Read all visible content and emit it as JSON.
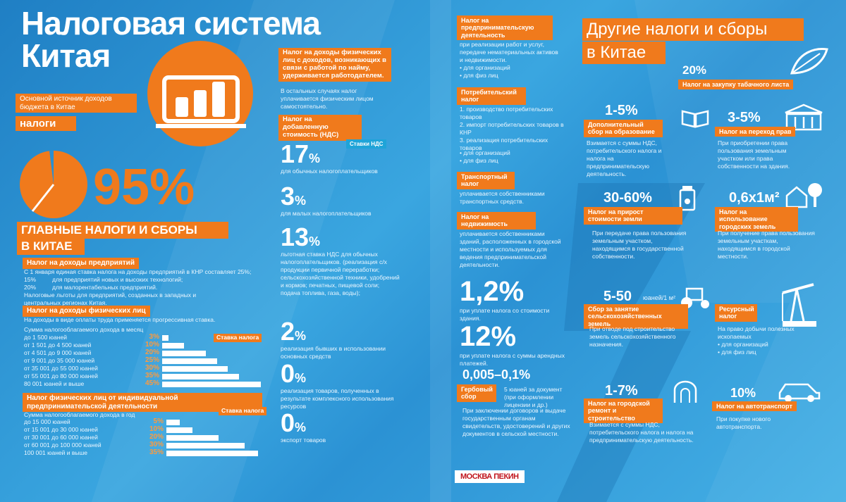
{
  "left": {
    "title_line1": "Налоговая система",
    "title_line2": "Китая",
    "source_label": "Основной источник доходов бюджета в Китае",
    "source_value": "налоги",
    "percent": "95%",
    "main_header_line1": "ГЛАВНЫЕ НАЛОГИ И СБОРЫ",
    "main_header_line2": "В КИТАЕ",
    "corp_title": "Налог на доходы предприятий",
    "corp_text1": "С 1 января единая ставка налога на доходы предприятий в КНР составляет 25%;",
    "corp_rate1": "15%",
    "corp_text2": "для предприятий новых и высоких технологий;",
    "corp_rate2": "20%",
    "corp_text3": "для малорентабельных предприятий.",
    "corp_text4": "Налоговые льготы для предприятий, созданных в западных и центральных регионах Китая.",
    "pit_title": "Налог на доходы физических лиц",
    "pit_text": "На доходы в виде оплаты труда применяется прогрессивная ставка.",
    "pit_head": "Сумма налогооблагаемого дохода в месяц",
    "pit_rate_label": "Ставка налога",
    "pit_rows": [
      {
        "label": "до 1 500 юаней",
        "rate": "3%",
        "level": 3
      },
      {
        "label": "от 1 501 до 4 500 юаней",
        "rate": "10%",
        "level": 10
      },
      {
        "label": "от 4 501 до 9 000 юаней",
        "rate": "20%",
        "level": 20
      },
      {
        "label": "от 9 001 до 35 000 юаней",
        "rate": "25%",
        "level": 25
      },
      {
        "label": "от 35 001 до 55 000 юаней",
        "rate": "30%",
        "level": 30
      },
      {
        "label": "от 55 001 до 80 000 юаней",
        "rate": "35%",
        "level": 35
      },
      {
        "label": "80 001 юаней и выше",
        "rate": "45%",
        "level": 45
      }
    ],
    "ent_title": "Налог физических лиц от индивидуальной предпринимательской деятельности",
    "ent_head": "Сумма налогооблагаемого дохода в год",
    "ent_rate_label": "Ставка налога",
    "ent_rows": [
      {
        "label": "до 15 000 юаней",
        "rate": "5%",
        "level": 5
      },
      {
        "label": "от 15 001 до 30 000 юаней",
        "rate": "10%",
        "level": 10
      },
      {
        "label": "от 30 001 до 60 000 юаней",
        "rate": "20%",
        "level": 20
      },
      {
        "label": "от 60 001 до 100 000 юаней",
        "rate": "30%",
        "level": 30
      },
      {
        "label": "100 001 юаней и выше",
        "rate": "35%",
        "level": 35
      }
    ]
  },
  "middle": {
    "pit_box": "Налог на доходы физических лиц с доходов, возникающих в связи с работой по найму, удерживается работодателем.",
    "pit_box_text": "В остальных случаях налог уплачивается физическим лицом самостоятельно.",
    "vat_title": "Налог на добавленную стоимость (НДС)",
    "vat_rates_label": "Ставки НДС",
    "vat": [
      {
        "num": "17",
        "unit": "%",
        "text": "для обычных налогоплательщиков"
      },
      {
        "num": "3",
        "unit": "%",
        "text": "для малых налогоплательщиков"
      },
      {
        "num": "13",
        "unit": "%",
        "text": "льготная ставка НДС для обычных налогоплательщиков. (реализация с/х продукции первичной переработки; сельскохозяйственной техники, удобрений и кормов; печатных, пищевой соли; подача топлива, газа, воды);"
      },
      {
        "num": "2",
        "unit": "%",
        "text": "реализация бывших в использовании основных средств"
      },
      {
        "num": "0",
        "unit": "%",
        "text": "реализация товаров, полученных в результате комплексного использования ресурсов"
      },
      {
        "num": "0",
        "unit": "%",
        "text": "экспорт товаров"
      }
    ]
  },
  "center": {
    "business_title": "Налог на предпринимательскую деятельность",
    "business_text": "при реализации работ и услуг, передаче нематериальных активов и недвижимости.",
    "business_b1": "• для организаций",
    "business_b2": "• для физ лиц",
    "consumption_title": "Потребительский налог",
    "consumption_text": "1. производство потребительских товаров\n2. импорт потребительских товаров в КНР\n3. реализация потребительских товаров",
    "consumption_b1": "• для организаций",
    "consumption_b2": "• для физ лиц",
    "transport_title": "Транспортный налог",
    "transport_text": "уплачивается собственниками транспортных средств.",
    "property_title": "Налог на недвижимость",
    "property_text": "уплачивается собственниками зданий, расположенных в городской местности и используемых для ведения предпринимательской деятельности.",
    "r1_num": "1,2%",
    "r1_text": "при уплате налога со стоимости здания.",
    "r2_num": "12%",
    "r2_text": "при уплате налога с суммы арендных платежей.",
    "stamp_num": "0,005–0,1%",
    "stamp_title": "Гербовый сбор",
    "stamp_side": "5 юаней за документ (при оформлении лицензии и др.)",
    "stamp_text": "При заключении договоров и выдаче государственным органам свидетельств, удостоверений и других документов в сельской местности."
  },
  "right": {
    "title_line1": "Другие налоги и сборы",
    "title_line2": "в Китае",
    "tobacco_num": "20%",
    "tobacco_title": "Налог на закупку табачного листа",
    "edu_num": "1-5%",
    "edu_title": "Дополнительный сбор на образование",
    "edu_text": "Взимается с суммы НДС, потребительского налога и налога на предпринимательскую деятельность.",
    "rights_num": "3-5%",
    "rights_title": "Налог на переход прав",
    "rights_text": "При приобретении права пользования земельным участком или права собственности на здания.",
    "land_num": "30-60%",
    "land_title": "Налог на прирост стоимости земли",
    "land_text": "При передаче права пользования земельным участком, находящимся в государственной собственности.",
    "urban_num": "0,6x1м²",
    "urban_title": "Налог на использование городских земель",
    "urban_text": "При получение права пользования земельным участкам, находящимся в городской местности.",
    "farm_num": "5-50",
    "farm_unit": "юаней/1 м²",
    "farm_title": "Сбор за занятие сельскохозяйственных земель",
    "farm_text": "При отводе под строительство земель сельскохозяйственного назначения.",
    "res_title": "Ресурсный налог",
    "res_text": "На право добычи полезных ископаемых",
    "res_b1": "• для организаций",
    "res_b2": "• для физ лиц",
    "city_num": "1-7%",
    "city_title": "Налог на городской ремонт и строительство",
    "city_text": "Взимается с суммы НДС, потребительского налога и налога на предпринимательскую деятельность.",
    "car_num": "10%",
    "car_title": "Налог на автотранспорт",
    "car_text": "При покупке нового автотранспорта.",
    "logo": "МОСКВА ПЕКИН"
  },
  "colors": {
    "orange": "#f07a1c",
    "blue": "#2b8fd0",
    "white": "#ffffff"
  }
}
